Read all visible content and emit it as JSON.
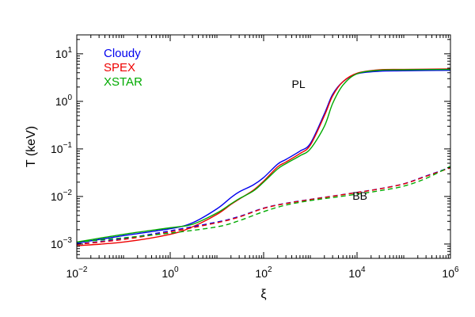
{
  "chart_data": {
    "type": "line",
    "xlabel": "ξ",
    "ylabel": "T (keV)",
    "x_scale": "log",
    "y_scale": "log",
    "xlim": [
      0.01,
      1000000
    ],
    "ylim": [
      0.0005,
      25
    ],
    "grid": false,
    "legend_position": "top-left",
    "x_ticks": [
      {
        "base": "10",
        "exp": "−2",
        "value": 0.01
      },
      {
        "base": "10",
        "exp": "0",
        "value": 1
      },
      {
        "base": "10",
        "exp": "2",
        "value": 100
      },
      {
        "base": "10",
        "exp": "4",
        "value": 10000
      },
      {
        "base": "10",
        "exp": "6",
        "value": 1000000
      }
    ],
    "y_ticks": [
      {
        "base": "10",
        "exp": "−3",
        "value": 0.001
      },
      {
        "base": "10",
        "exp": "−2",
        "value": 0.01
      },
      {
        "base": "10",
        "exp": "−1",
        "value": 0.1
      },
      {
        "base": "10",
        "exp": "0",
        "value": 1
      },
      {
        "base": "10",
        "exp": "1",
        "value": 10
      }
    ],
    "legend": [
      {
        "label": "Cloudy",
        "color": "#0000ee"
      },
      {
        "label": "SPEX",
        "color": "#ee0000"
      },
      {
        "label": "XSTAR",
        "color": "#00aa00"
      }
    ],
    "annotations": [
      {
        "text": "PL",
        "x": 400,
        "y": 1.9
      },
      {
        "text": "BB",
        "x": 8000,
        "y": 0.0085
      }
    ],
    "series": [
      {
        "name": "Cloudy",
        "group": "PL",
        "color": "#0000ee",
        "dash": "solid",
        "x": [
          0.01,
          0.1,
          1,
          3,
          10,
          20,
          30,
          60,
          100,
          200,
          300,
          600,
          1000,
          2000,
          3000,
          5000,
          10000,
          30000,
          100000,
          1000000
        ],
        "y": [
          0.00105,
          0.0015,
          0.0021,
          0.0028,
          0.0055,
          0.0095,
          0.0125,
          0.0175,
          0.025,
          0.048,
          0.06,
          0.09,
          0.13,
          0.55,
          1.4,
          2.6,
          3.8,
          4.3,
          4.4,
          4.5
        ]
      },
      {
        "name": "SPEX",
        "group": "PL",
        "color": "#ee0000",
        "dash": "solid",
        "x": [
          0.01,
          0.1,
          1,
          3,
          10,
          20,
          30,
          60,
          100,
          200,
          300,
          600,
          1000,
          2000,
          3000,
          5000,
          10000,
          30000,
          100000,
          1000000
        ],
        "y": [
          0.00092,
          0.0011,
          0.0016,
          0.0023,
          0.0042,
          0.0068,
          0.0088,
          0.0135,
          0.021,
          0.042,
          0.053,
          0.08,
          0.12,
          0.5,
          1.3,
          2.6,
          3.9,
          4.6,
          4.7,
          4.8
        ]
      },
      {
        "name": "XSTAR",
        "group": "PL",
        "color": "#00aa00",
        "dash": "solid",
        "x": [
          0.01,
          0.1,
          1,
          3,
          10,
          20,
          30,
          60,
          100,
          200,
          300,
          600,
          1000,
          2000,
          3000,
          5000,
          10000,
          30000,
          100000,
          1000000
        ],
        "y": [
          0.0011,
          0.0016,
          0.0022,
          0.0026,
          0.0045,
          0.007,
          0.009,
          0.013,
          0.02,
          0.038,
          0.049,
          0.072,
          0.1,
          0.3,
          0.9,
          2.2,
          3.8,
          4.5,
          4.6,
          4.7
        ]
      },
      {
        "name": "Cloudy",
        "group": "BB",
        "color": "#0000ee",
        "dash": "dashed",
        "x": [
          0.01,
          0.1,
          1,
          10,
          30,
          100,
          300,
          1000,
          3000,
          10000,
          30000,
          100000,
          300000,
          1000000
        ],
        "y": [
          0.001,
          0.0013,
          0.0019,
          0.0029,
          0.0038,
          0.0057,
          0.0072,
          0.0087,
          0.0102,
          0.0122,
          0.0145,
          0.0185,
          0.027,
          0.041
        ]
      },
      {
        "name": "SPEX",
        "group": "BB",
        "color": "#ee0000",
        "dash": "dashed",
        "x": [
          0.01,
          0.1,
          1,
          10,
          30,
          100,
          300,
          1000,
          3000,
          10000,
          30000,
          100000,
          300000,
          1000000
        ],
        "y": [
          0.00098,
          0.00125,
          0.0018,
          0.0028,
          0.0037,
          0.0056,
          0.0071,
          0.0086,
          0.0101,
          0.0121,
          0.0144,
          0.0183,
          0.0265,
          0.04
        ]
      },
      {
        "name": "XSTAR",
        "group": "BB",
        "color": "#00aa00",
        "dash": "dashed",
        "x": [
          0.01,
          0.1,
          1,
          10,
          30,
          100,
          300,
          1000,
          3000,
          10000,
          30000,
          100000,
          300000,
          1000000
        ],
        "y": [
          0.0011,
          0.00135,
          0.0017,
          0.0023,
          0.0031,
          0.0048,
          0.0066,
          0.0082,
          0.0095,
          0.0112,
          0.0132,
          0.0165,
          0.024,
          0.043
        ]
      }
    ]
  }
}
